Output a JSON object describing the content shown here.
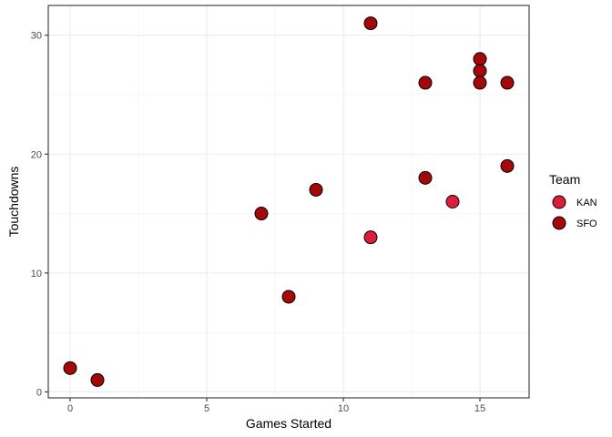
{
  "chart_data": {
    "type": "scatter",
    "title": "",
    "xlabel": "Games Started",
    "ylabel": "Touchdowns",
    "xlim": [
      -0.8,
      16.8
    ],
    "ylim": [
      -0.5,
      32.5
    ],
    "x_ticks": [
      0,
      5,
      10,
      15
    ],
    "y_ticks": [
      0,
      10,
      20,
      30
    ],
    "grid": true,
    "legend": {
      "title": "Team",
      "position": "right",
      "entries": [
        {
          "name": "KAN",
          "color": "#dc1e3c"
        },
        {
          "name": "SFO",
          "color": "#a50808"
        }
      ]
    },
    "series": [
      {
        "name": "KAN",
        "color": "#dc1e3c",
        "points": [
          {
            "x": 11,
            "y": 13
          },
          {
            "x": 14,
            "y": 16
          }
        ]
      },
      {
        "name": "SFO",
        "color": "#a50808",
        "points": [
          {
            "x": 0,
            "y": 2
          },
          {
            "x": 1,
            "y": 1
          },
          {
            "x": 7,
            "y": 15
          },
          {
            "x": 8,
            "y": 8
          },
          {
            "x": 9,
            "y": 17
          },
          {
            "x": 11,
            "y": 31
          },
          {
            "x": 13,
            "y": 26
          },
          {
            "x": 13,
            "y": 18
          },
          {
            "x": 15,
            "y": 28
          },
          {
            "x": 15,
            "y": 27
          },
          {
            "x": 15,
            "y": 26
          },
          {
            "x": 16,
            "y": 26
          },
          {
            "x": 16,
            "y": 19
          }
        ]
      }
    ]
  }
}
